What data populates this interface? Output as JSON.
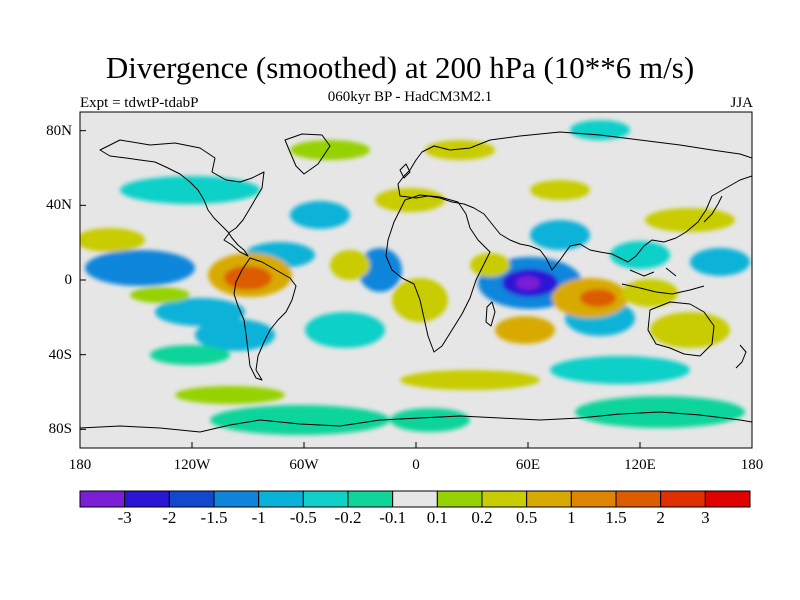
{
  "title": "Divergence (smoothed) at 200 hPa (10**6 m/s)",
  "subtitle": "060kyr BP - HadCM3M2.1",
  "experiment": "Expt = tdwtP-tdabP",
  "season": "JJA",
  "lat_ticks": [
    "80N",
    "40N",
    "0",
    "40S",
    "80S"
  ],
  "lon_ticks": [
    "180",
    "120W",
    "60W",
    "0",
    "60E",
    "120E",
    "180"
  ],
  "colorbar": {
    "labels": [
      "-3",
      "-2",
      "-1.5",
      "-1",
      "-0.5",
      "-0.2",
      "-0.1",
      "0.1",
      "0.2",
      "0.5",
      "1",
      "1.5",
      "2",
      "3"
    ],
    "colors": [
      "#7a1fd6",
      "#2a16d4",
      "#1248d0",
      "#0f86dc",
      "#08b2d8",
      "#10d0c8",
      "#10d49a",
      "#e6e6e6",
      "#96d200",
      "#c8cc00",
      "#d8aa00",
      "#de8400",
      "#dc5c00",
      "#e03000",
      "#e00000"
    ]
  },
  "colors": {
    "background": "#e6e6e6",
    "coast": "#000000"
  }
}
